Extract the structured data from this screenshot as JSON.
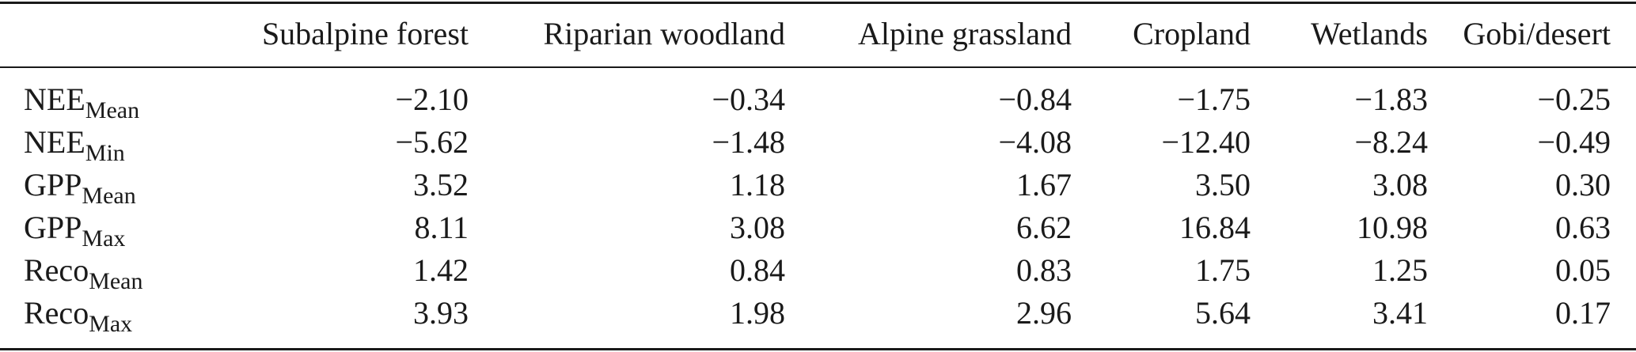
{
  "table": {
    "columns": [
      "Subalpine forest",
      "Riparian woodland",
      "Alpine grassland",
      "Cropland",
      "Wetlands",
      "Gobi/desert"
    ],
    "rows": [
      {
        "label": "NEE",
        "subscript": "Mean",
        "values": [
          "−2.10",
          "−0.34",
          "−0.84",
          "−1.75",
          "−1.83",
          "−0.25"
        ]
      },
      {
        "label": "NEE",
        "subscript": "Min",
        "values": [
          "−5.62",
          "−1.48",
          "−4.08",
          "−12.40",
          "−8.24",
          "−0.49"
        ]
      },
      {
        "label": "GPP",
        "subscript": "Mean",
        "values": [
          "3.52",
          "1.18",
          "1.67",
          "3.50",
          "3.08",
          "0.30"
        ]
      },
      {
        "label": "GPP",
        "subscript": "Max",
        "values": [
          "8.11",
          "3.08",
          "6.62",
          "16.84",
          "10.98",
          "0.63"
        ]
      },
      {
        "label": "Reco",
        "subscript": "Mean",
        "values": [
          "1.42",
          "0.84",
          "0.83",
          "1.75",
          "1.25",
          "0.05"
        ]
      },
      {
        "label": "Reco",
        "subscript": "Max",
        "values": [
          "3.93",
          "1.98",
          "2.96",
          "5.64",
          "3.41",
          "0.17"
        ]
      }
    ]
  }
}
